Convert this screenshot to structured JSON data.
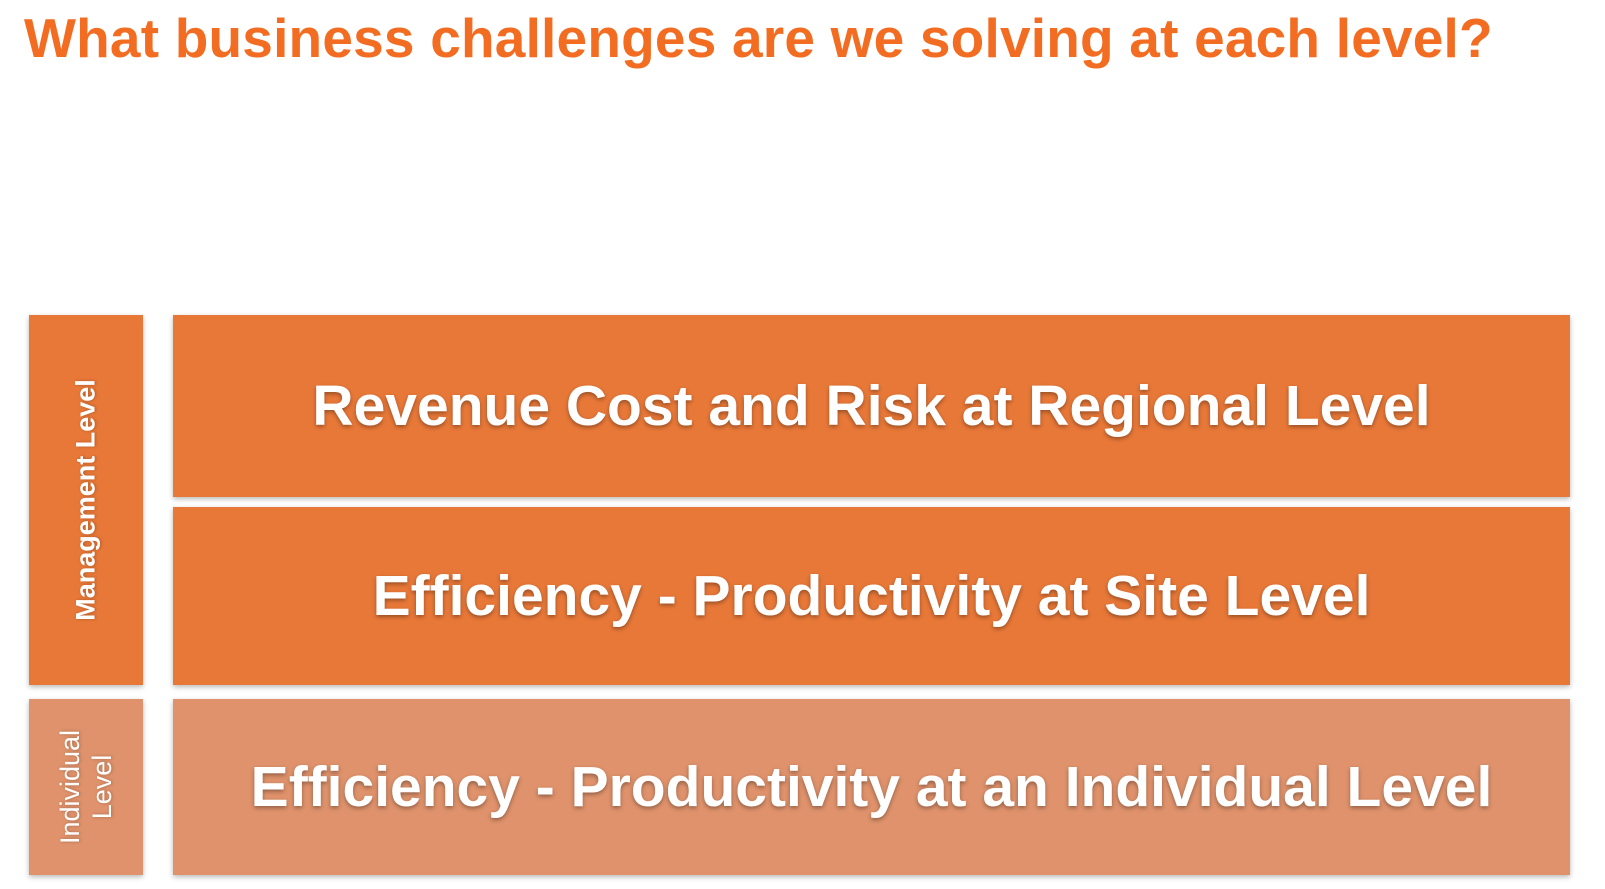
{
  "title": "What business challenges are we solving at each level?",
  "levels": {
    "management": {
      "label": "Management Level",
      "rows": [
        "Revenue Cost and Risk at Regional Level",
        "Efficiency - Productivity at Site Level"
      ]
    },
    "individual": {
      "label": "Individual Level",
      "rows": [
        "Efficiency - Productivity at an Individual Level"
      ]
    }
  },
  "colors": {
    "title": "#F26C21",
    "management_fill": "#E87838",
    "individual_fill": "#DF926B",
    "label_text": "#FFFFFF"
  }
}
